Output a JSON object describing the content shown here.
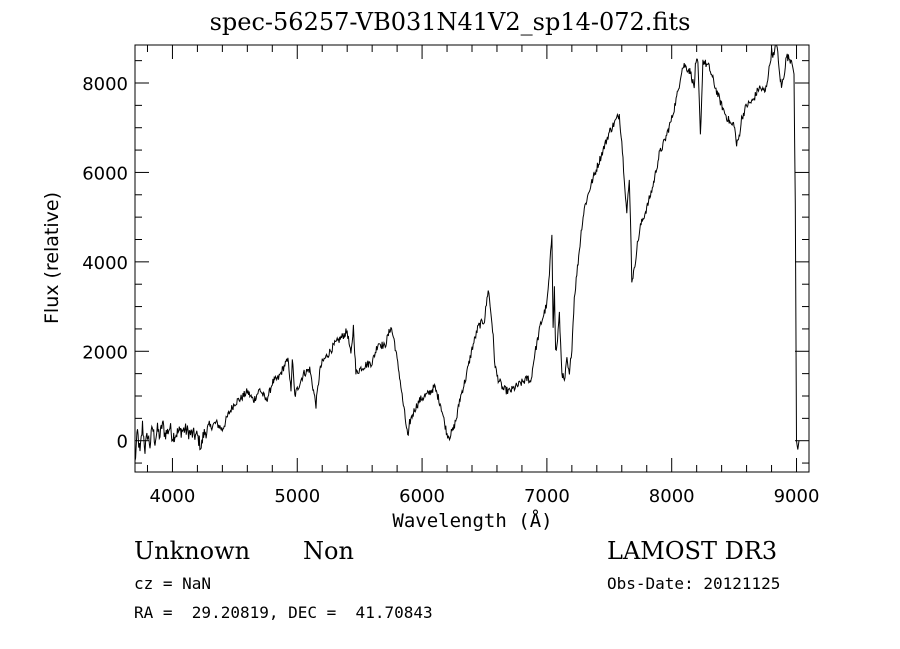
{
  "chart_data": {
    "type": "line",
    "title": "spec-56257-VB031N41V2_sp14-072.fits",
    "xlabel": "Wavelength (Å)",
    "ylabel": "Flux (relative)",
    "xlim": [
      3700,
      9100
    ],
    "ylim": [
      -700,
      8850
    ],
    "x_ticks": [
      4000,
      5000,
      6000,
      7000,
      8000,
      9000
    ],
    "y_ticks": [
      0,
      2000,
      4000,
      6000,
      8000
    ],
    "x_tick_labels": [
      "4000",
      "5000",
      "6000",
      "7000",
      "8000",
      "9000"
    ],
    "y_tick_labels": [
      "0",
      "2000",
      "4000",
      "6000",
      "8000"
    ],
    "grid": false,
    "line_color": "#000000",
    "series": [
      {
        "x": [
          3700,
          3720,
          3740,
          3760,
          3780,
          3800,
          3820,
          3840,
          3860,
          3880,
          3900,
          3920,
          3940,
          3960,
          3980,
          4000,
          4050,
          4100,
          4150,
          4200,
          4230,
          4250,
          4300,
          4350,
          4400,
          4450,
          4500,
          4550,
          4600,
          4650,
          4700,
          4750,
          4780,
          4800,
          4850,
          4900,
          4930,
          4950,
          4960,
          4980,
          5000,
          5050,
          5100,
          5150,
          5180,
          5200,
          5250,
          5300,
          5350,
          5400,
          5430,
          5450,
          5470,
          5500,
          5550,
          5600,
          5650,
          5700,
          5750,
          5780,
          5800,
          5820,
          5840,
          5860,
          5880,
          5890,
          5900,
          5920,
          5940,
          5960,
          5980,
          6000,
          6050,
          6100,
          6150,
          6180,
          6200,
          6220,
          6250,
          6280,
          6300,
          6350,
          6400,
          6450,
          6500,
          6530,
          6550,
          6560,
          6570,
          6580,
          6600,
          6650,
          6700,
          6750,
          6800,
          6850,
          6870,
          6900,
          6950,
          7000,
          7020,
          7040,
          7050,
          7060,
          7070,
          7080,
          7100,
          7120,
          7140,
          7160,
          7180,
          7200,
          7220,
          7250,
          7280,
          7300,
          7350,
          7400,
          7450,
          7500,
          7550,
          7580,
          7600,
          7620,
          7640,
          7660,
          7670,
          7680,
          7700,
          7720,
          7750,
          7800,
          7850,
          7900,
          7950,
          8000,
          8050,
          8080,
          8100,
          8150,
          8180,
          8190,
          8200,
          8210,
          8230,
          8250,
          8300,
          8350,
          8400,
          8430,
          8450,
          8480,
          8500,
          8520,
          8540,
          8560,
          8600,
          8650,
          8700,
          8750,
          8780,
          8800,
          8820,
          8840,
          8860,
          8880,
          8900,
          8920,
          8940,
          8960,
          8980,
          8990,
          9000,
          9010,
          9015,
          9020
        ],
        "y": [
          -500,
          200,
          -300,
          350,
          -200,
          150,
          -100,
          300,
          0,
          250,
          100,
          400,
          150,
          200,
          300,
          100,
          200,
          250,
          150,
          100,
          -150,
          150,
          300,
          400,
          250,
          600,
          850,
          950,
          1100,
          900,
          1150,
          900,
          1100,
          1300,
          1400,
          1700,
          1800,
          1050,
          1850,
          1000,
          1150,
          1500,
          1600,
          800,
          1550,
          1750,
          1950,
          2150,
          2300,
          2450,
          1900,
          2550,
          1500,
          1600,
          1700,
          1750,
          2200,
          2100,
          2550,
          2200,
          1800,
          1450,
          1000,
          600,
          200,
          50,
          400,
          550,
          700,
          800,
          900,
          950,
          1050,
          1200,
          800,
          400,
          150,
          100,
          250,
          550,
          900,
          1400,
          2050,
          2550,
          2700,
          3400,
          2900,
          2650,
          2300,
          1800,
          1450,
          1150,
          1100,
          1200,
          1300,
          1400,
          1300,
          1900,
          2600,
          3050,
          3700,
          4650,
          2600,
          3400,
          2000,
          2100,
          2800,
          1550,
          1300,
          1800,
          1450,
          2100,
          3200,
          4000,
          4800,
          5200,
          5700,
          6100,
          6500,
          6900,
          7150,
          7300,
          6700,
          5900,
          5100,
          5800,
          5000,
          3600,
          3800,
          4300,
          4800,
          5200,
          5700,
          6400,
          6750,
          7200,
          7800,
          8300,
          8400,
          8250,
          7900,
          8350,
          8450,
          8450,
          6800,
          8500,
          8350,
          7900,
          7500,
          7300,
          7200,
          7050,
          7100,
          6600,
          6800,
          7200,
          7500,
          7600,
          7900,
          7800,
          8300,
          8700,
          8600,
          8950,
          8300,
          7900,
          8200,
          8600,
          8550,
          8500,
          8200,
          5300,
          0,
          -200,
          -100,
          0
        ]
      }
    ],
    "annotations": {
      "object_name": "Unknown",
      "object_type": "Non",
      "survey": "LAMOST DR3",
      "cz": "cz = NaN",
      "obs_date": "Obs-Date: 20121125",
      "coords": "RA =  29.20819, DEC =  41.70843"
    }
  }
}
